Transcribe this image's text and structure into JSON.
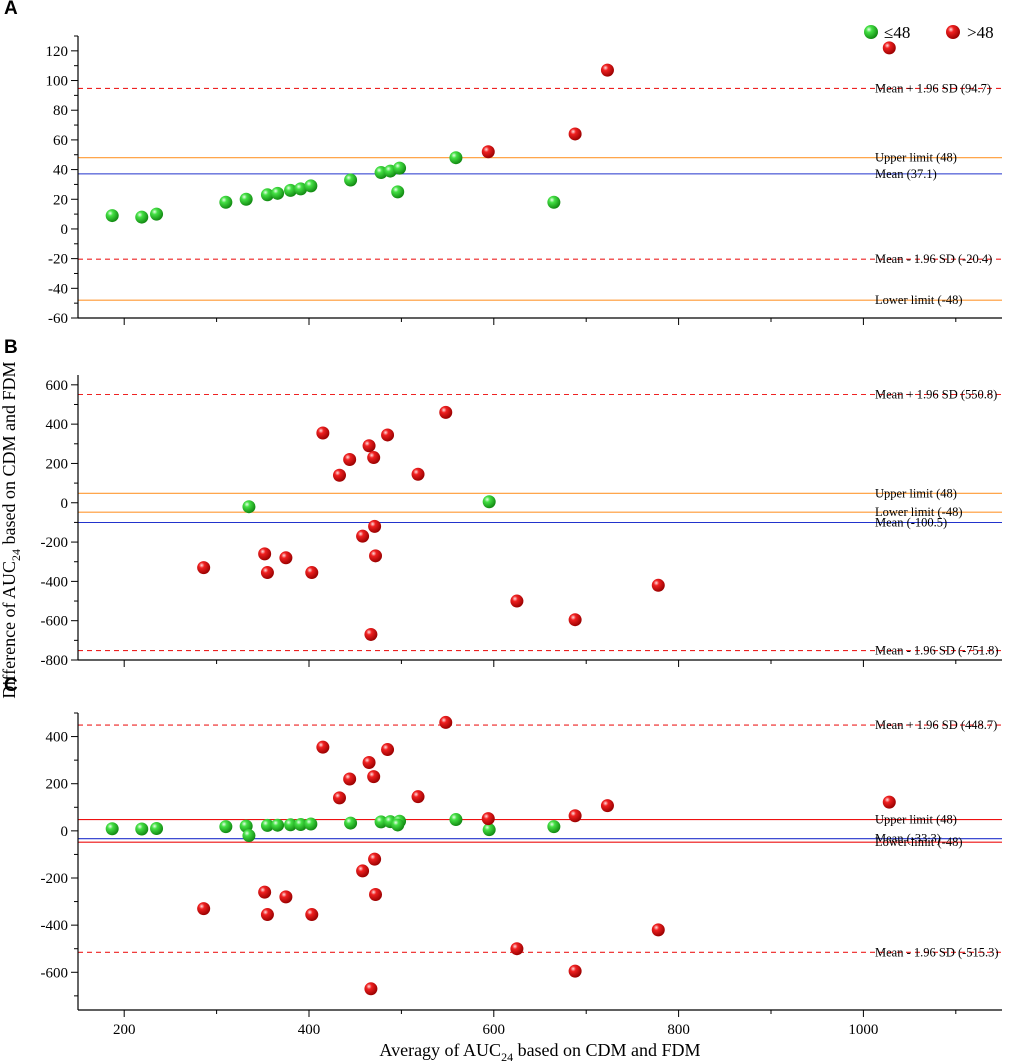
{
  "figure": {
    "xlabel": "Averagy of AUC",
    "xlabel_sub": "24",
    "xlabel_tail": " based on CDM and FDM",
    "ylabel": "Difference of AUC",
    "ylabel_sub": "24",
    "ylabel_tail": " based on CDM and FDM",
    "xlim": [
      150,
      1150
    ],
    "xticks": [
      200,
      400,
      600,
      800,
      1000
    ],
    "legend": [
      {
        "label": "≤48",
        "color": "#22cc22"
      },
      {
        "label": ">48",
        "color": "#ee1111"
      }
    ],
    "colors": {
      "green": "#22cc22",
      "red": "#ee1111",
      "orange": "#ff9933",
      "blue": "#2233cc",
      "dashed": "#ee2222"
    }
  },
  "chart_data": [
    {
      "type": "scatter",
      "panel": "A",
      "ylim": [
        -60,
        130
      ],
      "yticks": [
        -60,
        -40,
        -20,
        0,
        20,
        40,
        60,
        80,
        100,
        120
      ],
      "ref_lines": [
        {
          "value": 94.7,
          "label": "Mean + 1.96 SD (94.7)",
          "style": "dashed",
          "color": "#ee2222"
        },
        {
          "value": 48,
          "label": "Upper limit (48)",
          "style": "solid",
          "color": "#ff9933"
        },
        {
          "value": 37.1,
          "label": "Mean (37.1)",
          "style": "solid",
          "color": "#2233cc"
        },
        {
          "value": -20.4,
          "label": "Mean - 1.96 SD (-20.4)",
          "style": "dashed",
          "color": "#ee2222"
        },
        {
          "value": -48,
          "label": "Lower limit (-48)",
          "style": "solid",
          "color": "#ff9933"
        }
      ],
      "series": [
        {
          "name": "≤48",
          "color": "#22cc22",
          "points": [
            [
              187,
              9
            ],
            [
              219,
              8
            ],
            [
              235,
              10
            ],
            [
              310,
              18
            ],
            [
              332,
              20
            ],
            [
              355,
              23
            ],
            [
              366,
              24
            ],
            [
              380,
              26
            ],
            [
              391,
              27
            ],
            [
              402,
              29
            ],
            [
              445,
              33
            ],
            [
              478,
              38
            ],
            [
              488,
              39
            ],
            [
              498,
              41
            ],
            [
              496,
              25
            ],
            [
              559,
              48
            ],
            [
              665,
              18
            ]
          ]
        },
        {
          "name": ">48",
          "color": "#ee1111",
          "points": [
            [
              594,
              52
            ],
            [
              688,
              64
            ],
            [
              723,
              107
            ],
            [
              1028,
              122
            ]
          ]
        }
      ]
    },
    {
      "type": "scatter",
      "panel": "B",
      "ylim": [
        -800,
        650
      ],
      "yticks": [
        -800,
        -600,
        -400,
        -200,
        0,
        200,
        400,
        600
      ],
      "ref_lines": [
        {
          "value": 550.8,
          "label": "Mean + 1.96 SD (550.8)",
          "style": "dashed",
          "color": "#ee2222"
        },
        {
          "value": 48,
          "label": "Upper limit (48)",
          "style": "solid",
          "color": "#ff9933"
        },
        {
          "value": -48,
          "label": "Lower limit (-48)",
          "style": "solid",
          "color": "#ff9933"
        },
        {
          "value": -100.5,
          "label": "Mean  (-100.5)",
          "style": "solid",
          "color": "#2233cc"
        },
        {
          "value": -751.8,
          "label": "Mean - 1.96 SD (-751.8)",
          "style": "dashed",
          "color": "#ee2222"
        }
      ],
      "series": [
        {
          "name": "≤48",
          "color": "#22cc22",
          "points": [
            [
              335,
              -20
            ],
            [
              595,
              5
            ]
          ]
        },
        {
          "name": ">48",
          "color": "#ee1111",
          "points": [
            [
              286,
              -330
            ],
            [
              352,
              -260
            ],
            [
              355,
              -355
            ],
            [
              375,
              -280
            ],
            [
              403,
              -355
            ],
            [
              415,
              355
            ],
            [
              433,
              140
            ],
            [
              444,
              220
            ],
            [
              458,
              -170
            ],
            [
              465,
              290
            ],
            [
              470,
              230
            ],
            [
              471,
              -120
            ],
            [
              472,
              -270
            ],
            [
              467,
              -670
            ],
            [
              485,
              345
            ],
            [
              518,
              145
            ],
            [
              548,
              460
            ],
            [
              625,
              -500
            ],
            [
              688,
              -595
            ],
            [
              778,
              -420
            ]
          ]
        }
      ]
    },
    {
      "type": "scatter",
      "panel": "C",
      "ylim": [
        -760,
        500
      ],
      "yticks": [
        -600,
        -400,
        -200,
        0,
        200,
        400
      ],
      "ref_lines": [
        {
          "value": 448.7,
          "label": "Mean + 1.96 SD (448.7)",
          "style": "dashed",
          "color": "#ee2222"
        },
        {
          "value": 48,
          "label": "Upper limit (48)",
          "style": "solid",
          "color": "#ee1111"
        },
        {
          "value": -33.3,
          "label": "Mean (-33.3)",
          "style": "solid",
          "color": "#2233cc"
        },
        {
          "value": -48,
          "label": "Lower limit (-48)",
          "style": "solid",
          "color": "#ee1111"
        },
        {
          "value": -515.3,
          "label": "Mean - 1.96 SD (-515.3)",
          "style": "dashed",
          "color": "#ee2222"
        }
      ],
      "series": [
        {
          "name": "≤48",
          "color": "#22cc22",
          "points": [
            [
              187,
              9
            ],
            [
              219,
              8
            ],
            [
              235,
              10
            ],
            [
              310,
              18
            ],
            [
              332,
              20
            ],
            [
              335,
              -20
            ],
            [
              355,
              23
            ],
            [
              366,
              24
            ],
            [
              380,
              26
            ],
            [
              391,
              27
            ],
            [
              402,
              29
            ],
            [
              445,
              33
            ],
            [
              478,
              38
            ],
            [
              488,
              39
            ],
            [
              498,
              41
            ],
            [
              496,
              25
            ],
            [
              559,
              48
            ],
            [
              595,
              5
            ],
            [
              665,
              18
            ]
          ]
        },
        {
          "name": ">48",
          "color": "#ee1111",
          "points": [
            [
              286,
              -330
            ],
            [
              352,
              -260
            ],
            [
              355,
              -355
            ],
            [
              375,
              -280
            ],
            [
              403,
              -355
            ],
            [
              415,
              355
            ],
            [
              433,
              140
            ],
            [
              444,
              220
            ],
            [
              458,
              -170
            ],
            [
              465,
              290
            ],
            [
              470,
              230
            ],
            [
              471,
              -120
            ],
            [
              472,
              -270
            ],
            [
              467,
              -670
            ],
            [
              485,
              345
            ],
            [
              518,
              145
            ],
            [
              548,
              460
            ],
            [
              594,
              52
            ],
            [
              625,
              -500
            ],
            [
              688,
              64
            ],
            [
              688,
              -595
            ],
            [
              723,
              107
            ],
            [
              778,
              -420
            ],
            [
              1028,
              122
            ]
          ]
        }
      ]
    }
  ]
}
